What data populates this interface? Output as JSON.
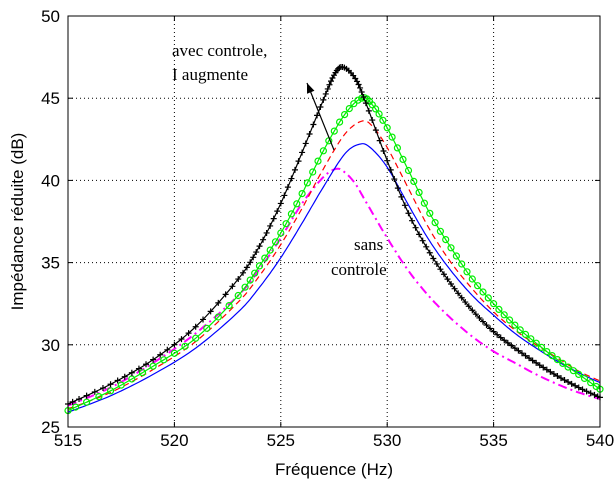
{
  "chart_data": {
    "type": "line",
    "title": "",
    "xlabel": "Fréquence (Hz)",
    "ylabel": "Impédance réduite (dB)",
    "xlim": [
      515,
      540
    ],
    "ylim": [
      25,
      50
    ],
    "xticks": [
      515,
      520,
      525,
      530,
      535,
      540
    ],
    "yticks": [
      25,
      30,
      35,
      40,
      45,
      50
    ],
    "grid": true,
    "annotations": [
      {
        "lines": [
          "avec controle,",
          "I augmente"
        ]
      },
      {
        "lines": [
          "sans",
          "controle"
        ]
      }
    ],
    "series": [
      {
        "style": "dash-dot",
        "color": "#ff00ff",
        "x": [
          515,
          517,
          519,
          521,
          523,
          524,
          525,
          526,
          527,
          527.6,
          528,
          528.5,
          529,
          530,
          531,
          532,
          533,
          534,
          535,
          536,
          537,
          538,
          539,
          540
        ],
        "y": [
          26.3,
          27.4,
          28.9,
          30.7,
          33.0,
          34.6,
          36.5,
          38.6,
          40.2,
          40.7,
          40.5,
          39.8,
          38.7,
          36.5,
          34.5,
          32.9,
          31.6,
          30.5,
          29.6,
          28.9,
          28.2,
          27.6,
          27.1,
          26.7
        ]
      },
      {
        "style": "solid",
        "color": "#0000ff",
        "x": [
          515,
          517,
          519,
          521,
          523,
          524,
          525,
          526,
          527,
          528,
          528.7,
          529.2,
          530,
          531,
          532,
          533,
          534,
          535,
          536,
          537,
          538,
          539,
          540
        ],
        "y": [
          25.9,
          26.9,
          28.2,
          29.8,
          32.0,
          33.5,
          35.3,
          37.4,
          39.6,
          41.6,
          42.2,
          42.0,
          40.8,
          38.5,
          36.3,
          34.5,
          33.0,
          31.8,
          30.7,
          29.8,
          29.0,
          28.3,
          27.7
        ]
      },
      {
        "style": "dashed",
        "color": "#ff0000",
        "x": [
          515,
          517,
          519,
          521,
          523,
          524,
          525,
          526,
          527,
          528,
          528.8,
          529.3,
          530,
          531,
          532,
          533,
          534,
          535,
          536,
          537,
          538,
          539,
          540
        ],
        "y": [
          26.1,
          27.1,
          28.5,
          30.2,
          32.6,
          34.2,
          36.1,
          38.3,
          40.7,
          42.8,
          43.6,
          43.3,
          42.0,
          39.5,
          37.0,
          35.0,
          33.4,
          32.0,
          30.9,
          30.0,
          29.2,
          28.4,
          27.8
        ]
      },
      {
        "style": "markers-circle",
        "color": "#00ee00",
        "x": [
          515,
          517,
          519,
          521,
          523,
          524,
          525,
          526,
          527,
          528,
          528.8,
          529.3,
          530,
          531,
          532,
          533,
          534,
          535,
          536,
          537,
          538,
          539,
          540
        ],
        "y": [
          26.0,
          27.2,
          28.7,
          30.4,
          33.0,
          34.8,
          36.8,
          39.2,
          41.8,
          44.0,
          45.0,
          44.6,
          43.2,
          40.6,
          38.0,
          35.9,
          34.0,
          32.5,
          31.2,
          30.1,
          29.1,
          28.2,
          27.3
        ]
      },
      {
        "style": "markers-plus",
        "color": "#000000",
        "x": [
          515,
          517,
          519,
          521,
          523,
          524,
          525,
          526,
          527,
          527.5,
          527.9,
          528.5,
          529,
          530,
          531,
          532,
          533,
          534,
          535,
          536,
          537,
          538,
          539,
          540
        ],
        "y": [
          26.4,
          27.6,
          29.1,
          31.1,
          34.0,
          36.0,
          38.6,
          41.7,
          44.9,
          46.4,
          46.9,
          46.2,
          44.7,
          41.2,
          38.0,
          35.6,
          33.7,
          32.1,
          30.8,
          29.8,
          28.9,
          28.1,
          27.4,
          26.8
        ]
      }
    ]
  }
}
